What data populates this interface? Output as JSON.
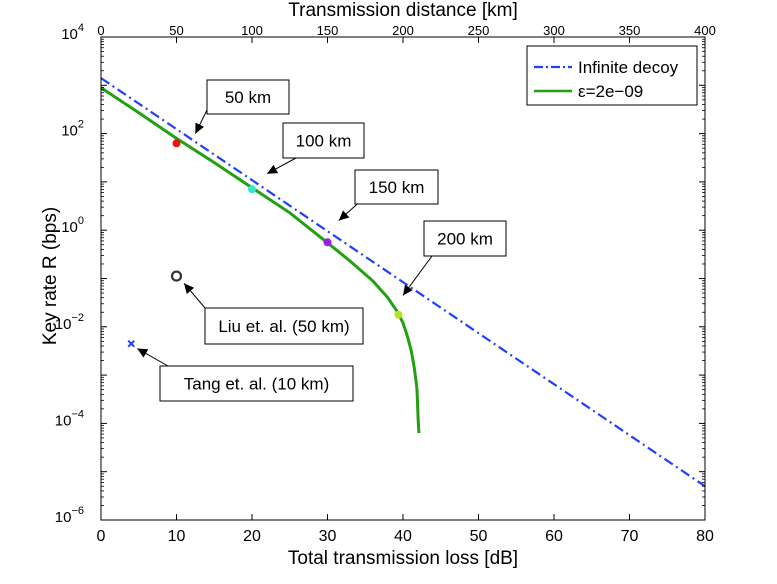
{
  "chart_data": {
    "type": "line",
    "ylabel": "Key rate R (bps)",
    "xlabel": "Total transmission loss [dB]",
    "x2label": "Transmission distance [km]",
    "xlim": [
      0,
      80
    ],
    "x2lim": [
      0,
      400
    ],
    "ylog_exponent_range": [
      -6,
      4
    ],
    "x_ticks": [
      "0",
      "10",
      "20",
      "30",
      "40",
      "50",
      "60",
      "70",
      "80"
    ],
    "x2_ticks": [
      "0",
      "50",
      "100",
      "150",
      "200",
      "250",
      "300",
      "350",
      "400"
    ],
    "y_ticks": [
      {
        "base": "10",
        "exp": "−6",
        "log": -6
      },
      {
        "base": "10",
        "exp": "−4",
        "log": -4
      },
      {
        "base": "10",
        "exp": "−2",
        "log": -2
      },
      {
        "base": "10",
        "exp": "0",
        "log": 0
      },
      {
        "base": "10",
        "exp": "2",
        "log": 2
      },
      {
        "base": "10",
        "exp": "4",
        "log": 4
      }
    ],
    "series": [
      {
        "name": "Infinite decoy",
        "color": "#1f3fff",
        "style": "dashdot",
        "x": [
          0,
          80
        ],
        "log10_y": [
          3.15,
          -5.3
        ]
      },
      {
        "name": "ε=2e−09",
        "color": "#22a010",
        "style": "solid",
        "x": [
          0,
          5,
          10,
          15,
          20,
          25,
          30,
          33,
          36,
          38,
          39.3,
          40,
          40.6,
          41.1,
          41.5,
          41.75,
          41.85,
          41.9,
          42,
          42.1
        ],
        "log10_y": [
          2.95,
          2.43,
          1.9,
          1.4,
          0.88,
          0.36,
          -0.26,
          -0.64,
          -1.05,
          -1.4,
          -1.7,
          -1.92,
          -2.2,
          -2.5,
          -2.85,
          -3.15,
          -3.3,
          -3.45,
          -3.9,
          -4.2
        ]
      }
    ],
    "points": [
      {
        "name": "50 km",
        "x": 10,
        "log10_y": 1.8,
        "color": "#ee1111",
        "marker": "dot"
      },
      {
        "name": "100 km",
        "x": 20,
        "log10_y": 0.85,
        "color": "#33e6cc",
        "marker": "dot"
      },
      {
        "name": "150 km",
        "x": 30,
        "log10_y": -0.25,
        "color": "#9b1fe0",
        "marker": "dot"
      },
      {
        "name": "200 km",
        "x": 39.4,
        "log10_y": -1.75,
        "color": "#bde020",
        "marker": "dot"
      },
      {
        "name": "Liu et. al. (50 km)",
        "x": 10,
        "log10_y": -0.95,
        "color": "#333333",
        "marker": "circle"
      },
      {
        "name": "Tang et. al. (10 km)",
        "x": 4,
        "log10_y": -2.35,
        "color": "#1f3fff",
        "marker": "x"
      }
    ],
    "annotations": [
      {
        "text": "50 km",
        "arrow_to_x": 12.5,
        "arrow_to_log10_y": 2.0
      },
      {
        "text": "100 km",
        "arrow_to_x": 22,
        "arrow_to_log10_y": 1.17
      },
      {
        "text": "150 km",
        "arrow_to_x": 31.5,
        "arrow_to_log10_y": 0.2
      },
      {
        "text": "200 km",
        "arrow_to_x": 40,
        "arrow_to_log10_y": -1.35
      },
      {
        "text": "Liu et. al. (50 km)",
        "arrow_to_x": 11,
        "arrow_to_log10_y": -1.1
      },
      {
        "text": "Tang et. al. (10 km)",
        "arrow_to_x": 4.8,
        "arrow_to_log10_y": -2.45
      }
    ],
    "legend": {
      "position": "top-right",
      "entries": [
        "Infinite decoy",
        "ε=2e−09"
      ]
    }
  }
}
